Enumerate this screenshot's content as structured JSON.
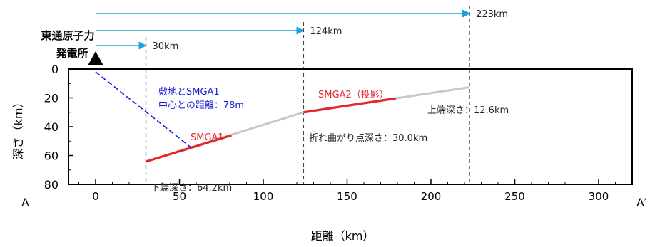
{
  "site": {
    "line1": "東通原子力",
    "line2": "発電所"
  },
  "distance_arrows": [
    {
      "label": "30km",
      "x": 30
    },
    {
      "label": "124km",
      "x": 124
    },
    {
      "label": "223km",
      "x": 223
    }
  ],
  "labels": {
    "epicentral_line1": "敷地とSMGA1",
    "epicentral_line2": "中心との距離：78m",
    "smga1": "SMGA1",
    "smga2": "SMGA2（投影）",
    "bottom_depth": "下端深さ：64.2km",
    "bend_depth": "折れ曲がり点深さ：30.0km",
    "top_depth": "上端深さ：12.6km",
    "section_start": "A",
    "section_end": "A′"
  },
  "colors": {
    "arrow": "#1e9fe6",
    "smga": "#e3262b",
    "fault": "#c8c8c8",
    "epicentral": "#1a1ad9",
    "frame": "#000000"
  },
  "chart_data": {
    "type": "line",
    "xlabel": "距離（km）",
    "ylabel": "深さ（km）",
    "xlim": [
      -20,
      318
    ],
    "ylim": [
      80,
      0
    ],
    "x_ticks": [
      0,
      50,
      100,
      150,
      200,
      250,
      300
    ],
    "y_ticks": [
      0,
      20,
      40,
      60,
      80
    ],
    "fault_trace": {
      "x": [
        30,
        124,
        223
      ],
      "y": [
        64.2,
        30.0,
        12.6
      ]
    },
    "smga_segments": [
      {
        "name": "SMGA1",
        "x": [
          30,
          81
        ],
        "y": [
          64.2,
          46.0
        ]
      },
      {
        "name": "SMGA2（投影）",
        "x": [
          124,
          179
        ],
        "y": [
          30.0,
          20.3
        ]
      }
    ],
    "site_to_smga1_line": {
      "x": [
        0,
        57
      ],
      "y": [
        0,
        54.5
      ]
    },
    "reference_lines_x": [
      30,
      124,
      223
    ]
  }
}
